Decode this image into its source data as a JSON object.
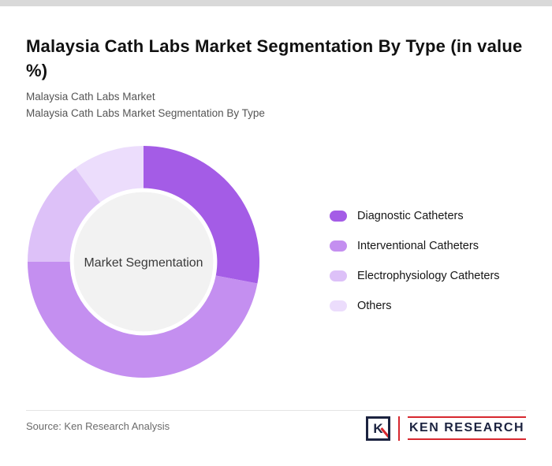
{
  "header": {
    "title": "Malaysia Cath Labs Market Segmentation By Type (in value %)",
    "subtitle_line1": "Malaysia Cath Labs Market",
    "subtitle_line2": "Malaysia Cath Labs Market Segmentation By Type"
  },
  "chart_data": {
    "type": "pie",
    "variant": "donut",
    "title": "Malaysia Cath Labs Market Segmentation By Type (in value %)",
    "center_label": "Market Segmentation",
    "categories": [
      "Diagnostic Catheters",
      "Interventional Catheters",
      "Electrophysiology Catheters",
      "Others"
    ],
    "values": [
      28,
      47,
      15,
      10
    ],
    "unit": "value %",
    "colors": [
      "#a45ce6",
      "#c48ff0",
      "#ddc1f8",
      "#ecddfc"
    ],
    "center_fill": "#f2f2f2",
    "center_text_color": "#3a3a3a",
    "legend_position": "right",
    "start_angle_deg": 0,
    "clockwise": true
  },
  "footer": {
    "source": "Source: Ken Research Analysis",
    "logo": {
      "letter": "K",
      "brand": "KEN RESEARCH",
      "accent_color": "#d7282f",
      "text_color": "#1c2340"
    }
  }
}
